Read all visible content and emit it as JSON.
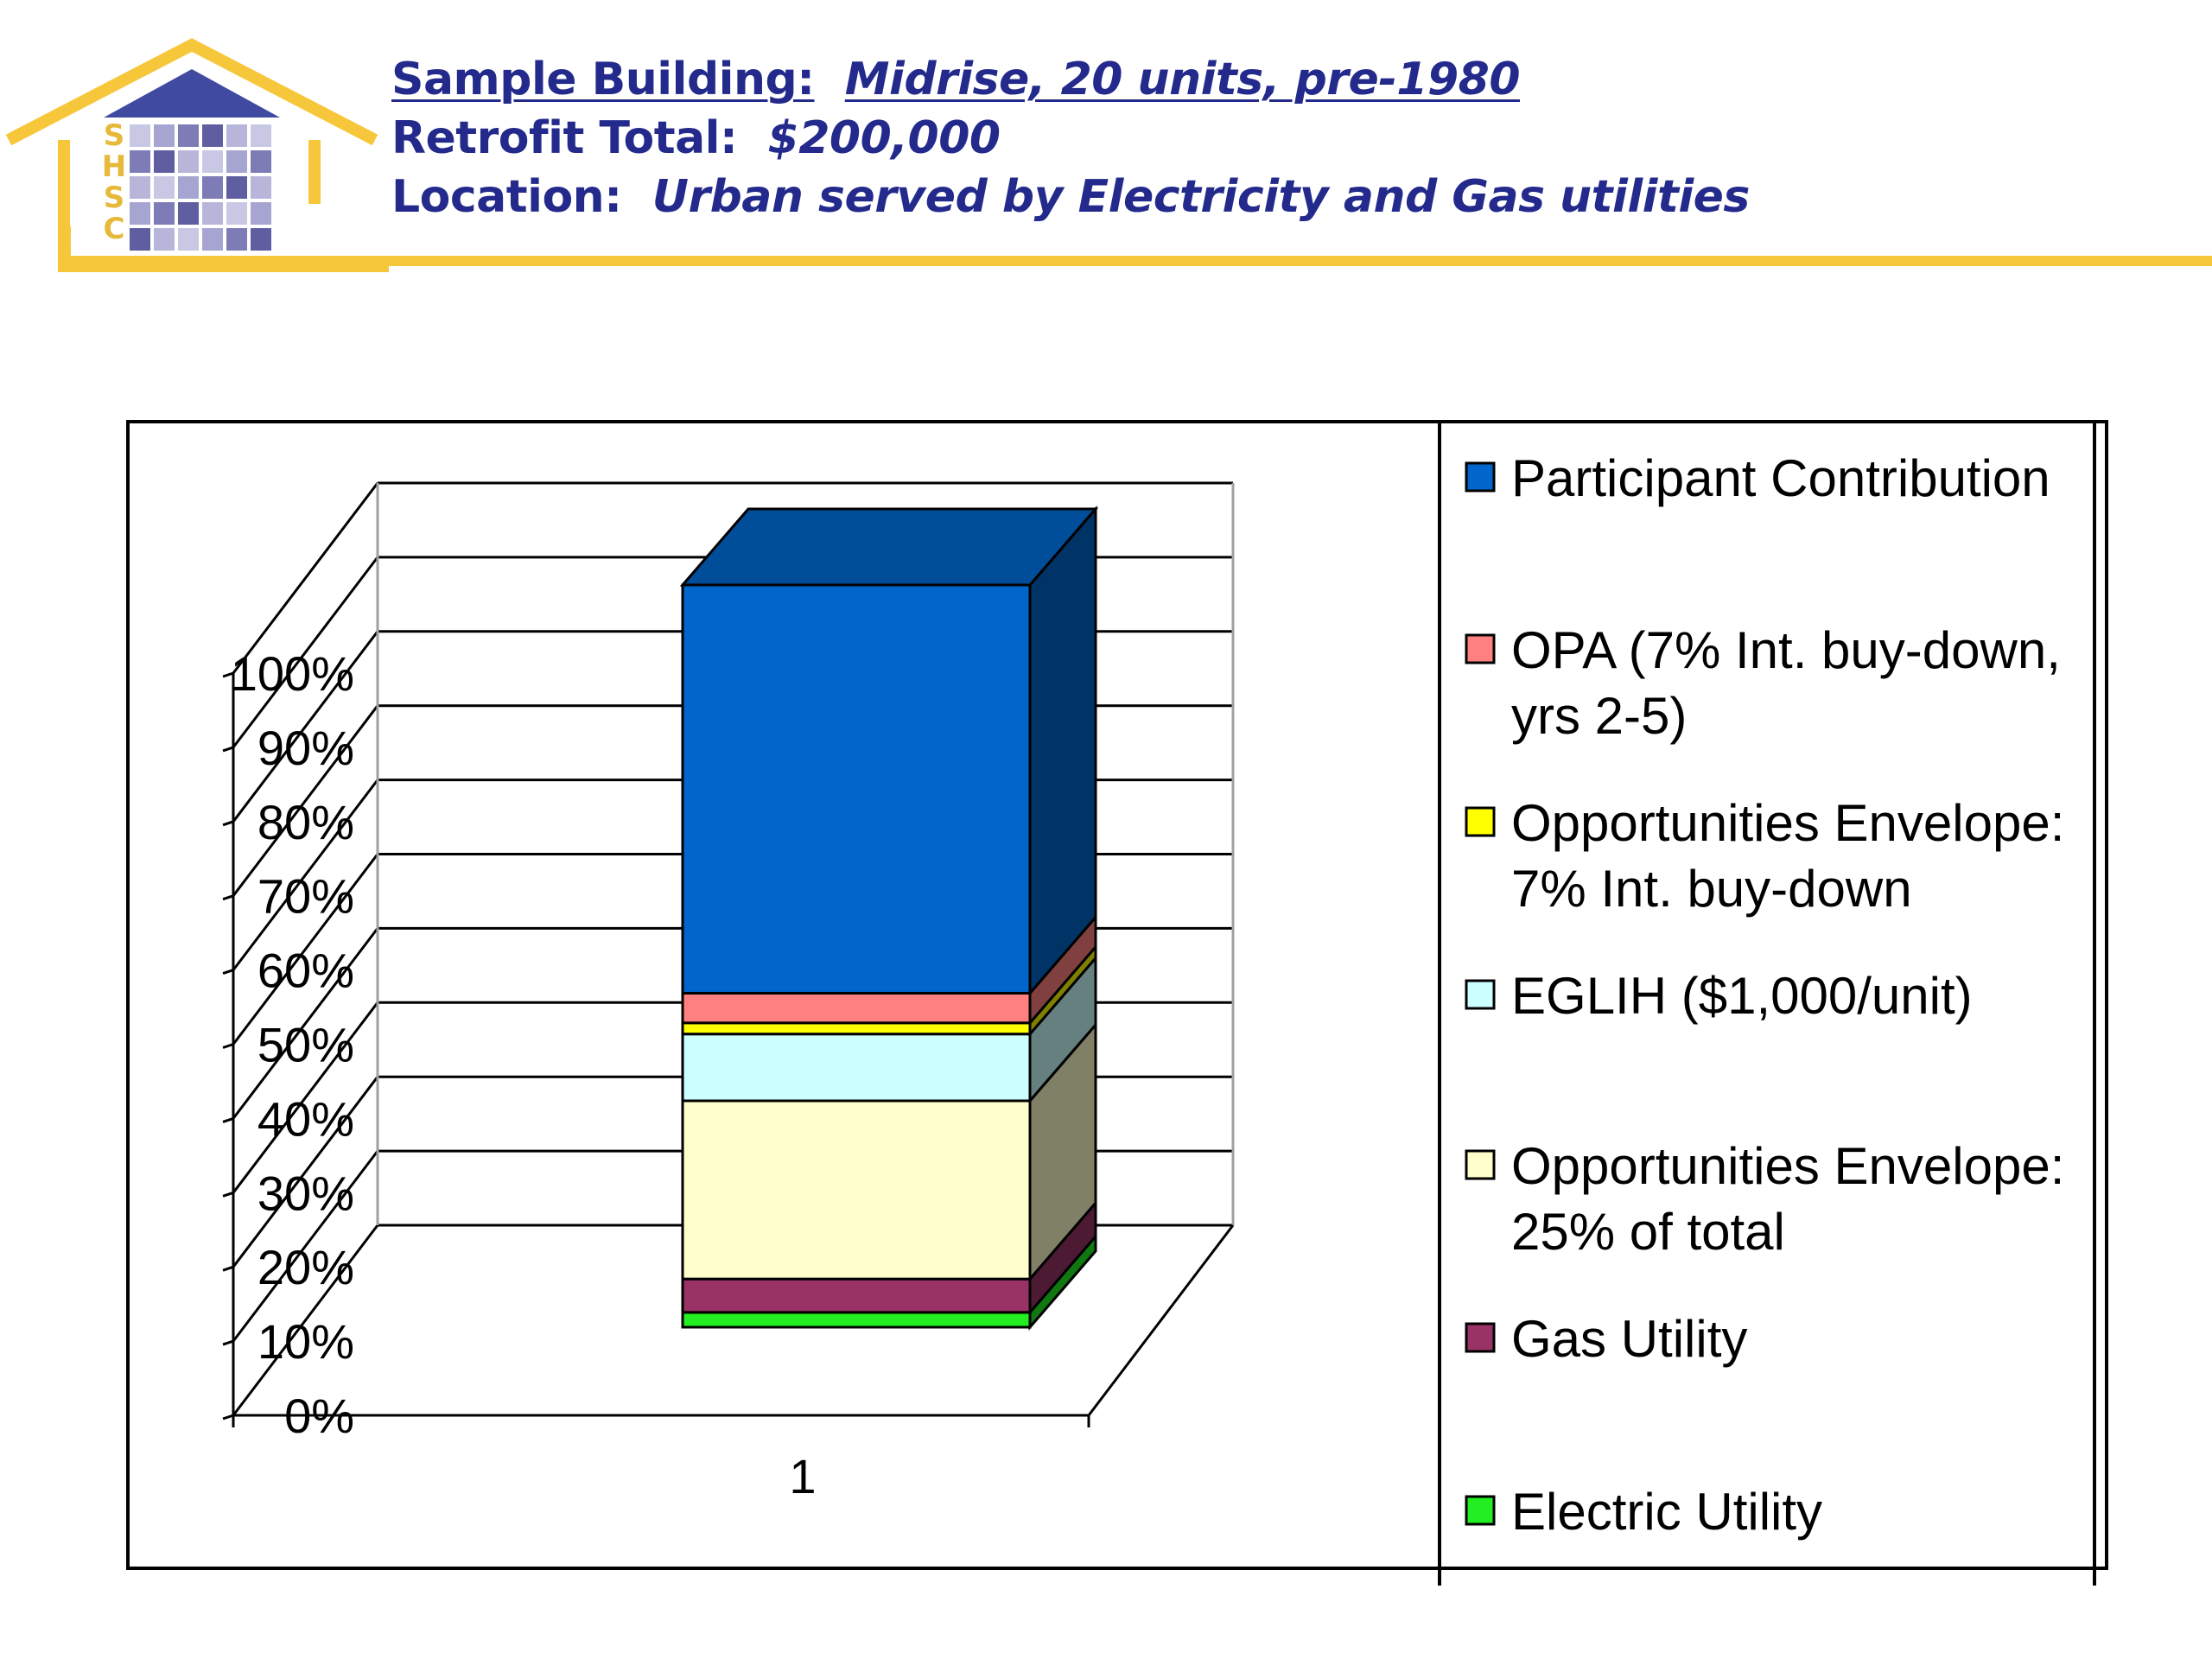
{
  "header": {
    "logo_letters": [
      "S",
      "H",
      "S",
      "C"
    ],
    "line1_label": "Sample Building:",
    "line1_value": "Midrise, 20 units, pre-1980",
    "line2_label": "Retrofit Total",
    "line2_sep": ":",
    "line2_value": "$200,000",
    "line3_label": "Location",
    "line3_sep": ":",
    "line3_value": "Urban served by Electricity and Gas utilities"
  },
  "colors": {
    "brand_gold": "#f7c73b",
    "brand_navy": "#232a8c"
  },
  "chart_data": {
    "type": "bar",
    "stacked": true,
    "three_d": true,
    "categories": [
      "1"
    ],
    "ylim": [
      0,
      100
    ],
    "y_ticks": [
      "0%",
      "10%",
      "20%",
      "30%",
      "40%",
      "50%",
      "60%",
      "70%",
      "80%",
      "90%",
      "100%"
    ],
    "grid": true,
    "legend_position": "right",
    "series": [
      {
        "name": "Electric Utility",
        "values": [
          2
        ],
        "color": "#22ee22",
        "legend_lines": [
          "Electric Utility"
        ]
      },
      {
        "name": "Gas Utility",
        "values": [
          4.5
        ],
        "color": "#993366",
        "legend_lines": [
          "Gas Utility"
        ]
      },
      {
        "name": "Opportunities Envelope: 25% of total",
        "values": [
          24
        ],
        "color": "#ffffcc",
        "legend_lines": [
          "Opportunities Envelope:",
          "25% of total"
        ]
      },
      {
        "name": "EGLIH ($1,000/unit)",
        "values": [
          9
        ],
        "color": "#ccffff",
        "legend_lines": [
          "EGLIH ($1,000/unit)"
        ]
      },
      {
        "name": "Opportunities Envelope: 7% Int. buy-down",
        "values": [
          1.5
        ],
        "color": "#ffff00",
        "legend_lines": [
          "Opportunities Envelope:",
          "7% Int. buy-down"
        ]
      },
      {
        "name": "OPA (7% Int. buy-down, yrs 2-5)",
        "values": [
          4
        ],
        "color": "#ff8080",
        "legend_lines": [
          "OPA (7% Int. buy-down,",
          "yrs 2-5)"
        ]
      },
      {
        "name": "Participant Contribution",
        "values": [
          55
        ],
        "color": "#0066cc",
        "legend_lines": [
          "Participant Contribution"
        ]
      }
    ]
  }
}
